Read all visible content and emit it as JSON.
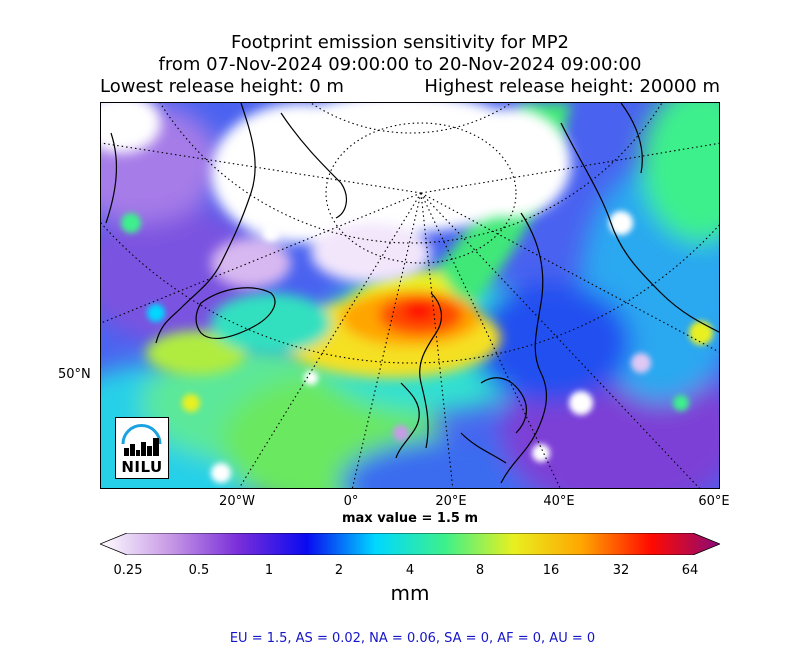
{
  "title": {
    "line1": "Footprint emission sensitivity for MP2",
    "line2": "from 07-Nov-2024 09:00:00 to 20-Nov-2024 09:00:00",
    "line3_left": "Lowest release height: 0 m",
    "line3_right": "Highest release height: 20000 m"
  },
  "map": {
    "lat_labels": [
      "50°N"
    ],
    "lon_labels": [
      "20°W",
      "0°",
      "20°E",
      "40°E",
      "60°E"
    ],
    "max_value": "max value = 1.5 m",
    "logo_text": "NILU"
  },
  "colorbar": {
    "ticks": [
      "0.25",
      "0.5",
      "1",
      "2",
      "4",
      "8",
      "16",
      "32",
      "64"
    ],
    "unit": "mm",
    "colors": [
      "#ffffff",
      "#c89be6",
      "#7a2fd9",
      "#0a0af0",
      "#00d8ff",
      "#3cf08c",
      "#e8f020",
      "#ffa500",
      "#ff0a00",
      "#8b0a78"
    ]
  },
  "stats": "EU = 1.5,  AS = 0.02,  NA = 0.06,  SA = 0,  AF = 0,  AU = 0"
}
